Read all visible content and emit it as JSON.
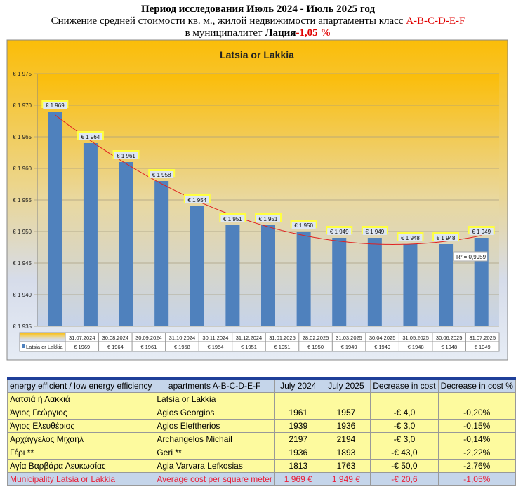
{
  "header": {
    "line1": "Период исследования Июль 2024 - Июль 2025 год",
    "line2": "Снижение средней стоимости кв. м., жилой недвижимости апартаменты класс ",
    "line2_classes": "A-B-C-D-E-F",
    "line3": "в муниципалитет ",
    "line3_bold": "Лация",
    "line3_pct": "-1,05 %"
  },
  "chart_data": {
    "type": "bar",
    "title": "Latsia or Lakkia",
    "categories": [
      "31.07.2024",
      "30.08.2024",
      "30.09.2024",
      "31.10.2024",
      "30.11.2024",
      "31.12.2024",
      "31.01.2025",
      "28.02.2025",
      "31.03.2025",
      "30.04.2025",
      "31.05.2025",
      "30.06.2025",
      "31.07.2025"
    ],
    "series": [
      {
        "name": "Latsia or Lakkia",
        "values": [
          1969,
          1964,
          1961,
          1958,
          1954,
          1951,
          1951,
          1950,
          1949,
          1949,
          1948,
          1948,
          1949
        ],
        "color": "#4f81bd"
      }
    ],
    "data_labels": [
      "€ 1 969",
      "€ 1 964",
      "€ 1 961",
      "€ 1 958",
      "€ 1 954",
      "€ 1 951",
      "€ 1 951",
      "€ 1 950",
      "€ 1 949",
      "€ 1 949",
      "€ 1 948",
      "€ 1 948",
      "€ 1 949"
    ],
    "table_labels": [
      "€ 1969",
      "€ 1964",
      "€ 1961",
      "€ 1958",
      "€ 1954",
      "€ 1951",
      "€ 1951",
      "€ 1950",
      "€ 1949",
      "€ 1949",
      "€ 1948",
      "€ 1948",
      "€ 1949"
    ],
    "ylim": [
      1935,
      1975
    ],
    "yticks": [
      1935,
      1940,
      1945,
      1950,
      1955,
      1960,
      1965,
      1970,
      1975
    ],
    "ytick_labels": [
      "€ 1 935",
      "€ 1 940",
      "€ 1 945",
      "€ 1 950",
      "€ 1 955",
      "€ 1 960",
      "€ 1 965",
      "€ 1 970",
      "€ 1 975"
    ],
    "trendline": {
      "type": "polynomial",
      "color": "#e02020",
      "r2_label": "R² = 0,9959"
    },
    "grid": true,
    "legend": "data-table"
  },
  "table": {
    "headers": [
      "energy efficient / low energy efficiency",
      "apartments A-B-C-D-E-F",
      "July 2024",
      "July 2025",
      "Decrease in cost",
      "Decrease in cost  %"
    ],
    "rows": [
      [
        "Λατσιά ή Λακκιά",
        "Latsia or Lakkia",
        "",
        "",
        "",
        ""
      ],
      [
        "Άγιος Γεώργιος",
        "Agios Georgios",
        "1961",
        "1957",
        "-€ 4,0",
        "-0,20%"
      ],
      [
        "Άγιος Ελευθέριος",
        "Agios Eleftherios",
        "1939",
        "1936",
        "-€ 3,0",
        "-0,15%"
      ],
      [
        "Αρχάγγελος Μιχαήλ",
        "Archangelos Michail",
        "2197",
        "2194",
        "-€ 3,0",
        "-0,14%"
      ],
      [
        "Γέρι **",
        "Geri **",
        "1936",
        "1893",
        "-€ 43,0",
        "-2,22%"
      ],
      [
        "Αγία Βαρβάρα Λευκωσίας",
        "Agia Varvara Lefkosias",
        "1813",
        "1763",
        "-€ 50,0",
        "-2,76%"
      ]
    ],
    "total": [
      "Municipality  Latsia or Lakkia",
      "Average cost per square meter",
      "1 969 €",
      "1 949 €",
      "-€ 20,6",
      "-1,05%"
    ]
  }
}
